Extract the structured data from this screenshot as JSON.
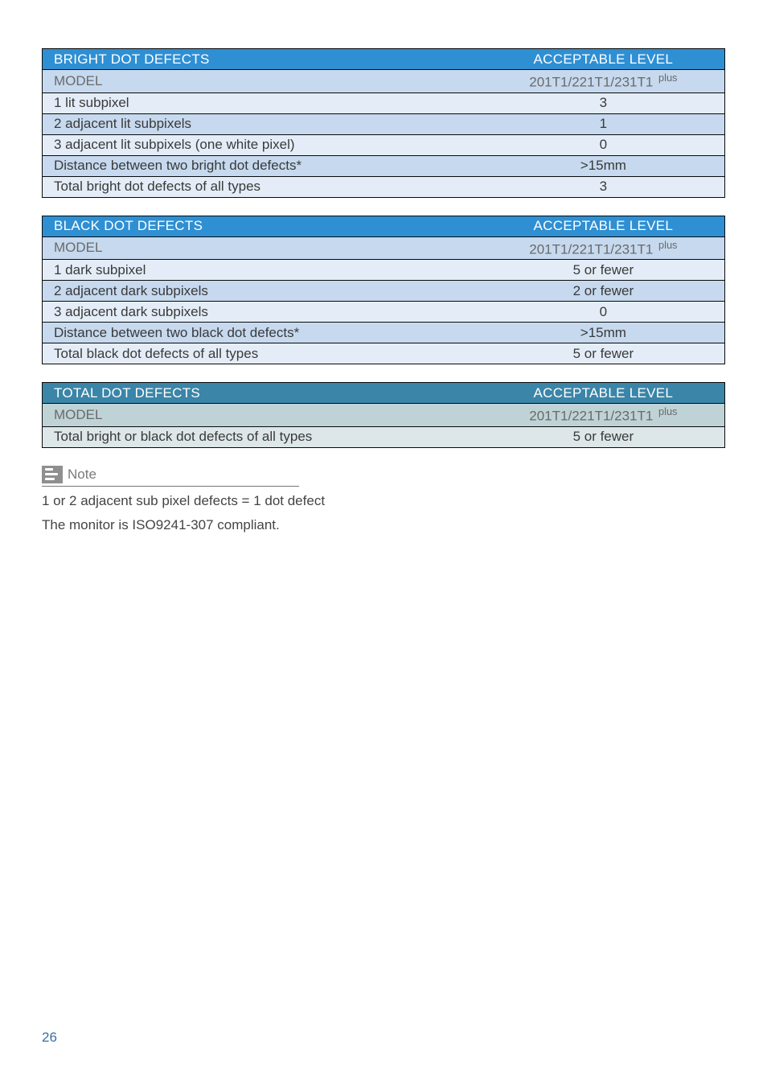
{
  "colors": {
    "hdr_bg_tables12": "#2f8fd3",
    "hdr_bg_table3": "#3a85a8",
    "row_alt_a": "#c6d9ee",
    "row_alt_b": "#e4edf7",
    "row_alt_a3": "#bfd3d6",
    "row_alt_b3": "#dde7e9",
    "model_text": "#6a6a6a",
    "body_text": "#3a3a3a",
    "note_gray": "#7a7a7a",
    "page_num": "#3a6ea8"
  },
  "tables": [
    {
      "id": "bright",
      "hdr_bg": "#2f8fd3",
      "alt_a": "#c6d9ee",
      "alt_b": "#e4edf7",
      "header": [
        "BRIGHT DOT DEFECTS",
        "ACCEPTABLE LEVEL"
      ],
      "rows": [
        {
          "c1": "MODEL",
          "c2": "201T1/221T1/231T1",
          "plus": true,
          "model": true
        },
        {
          "c1": "1 lit subpixel",
          "c2": "3"
        },
        {
          "c1": "2 adjacent lit subpixels",
          "c2": "1"
        },
        {
          "c1": "3 adjacent lit subpixels (one white pixel)",
          "c2": "0"
        },
        {
          "c1": "Distance between two bright dot defects*",
          "c2": ">15mm"
        },
        {
          "c1": "Total bright dot defects of all types",
          "c2": "3"
        }
      ]
    },
    {
      "id": "black",
      "hdr_bg": "#2f8fd3",
      "alt_a": "#c6d9ee",
      "alt_b": "#e4edf7",
      "header": [
        "BLACK DOT DEFECTS",
        "ACCEPTABLE LEVEL"
      ],
      "rows": [
        {
          "c1": "MODEL",
          "c2": "201T1/221T1/231T1",
          "plus": true,
          "model": true
        },
        {
          "c1": "1 dark subpixel",
          "c2": "5 or fewer"
        },
        {
          "c1": "2 adjacent dark subpixels",
          "c2": "2 or fewer"
        },
        {
          "c1": "3 adjacent dark subpixels",
          "c2": "0"
        },
        {
          "c1": "Distance between two black dot defects*",
          "c2": ">15mm"
        },
        {
          "c1": "Total black dot defects of all types",
          "c2": "5 or fewer"
        }
      ]
    },
    {
      "id": "total",
      "hdr_bg": "#3a85a8",
      "alt_a": "#bfd3d6",
      "alt_b": "#dde7e9",
      "header": [
        "TOTAL DOT DEFECTS",
        "ACCEPTABLE LEVEL"
      ],
      "rows": [
        {
          "c1": "MODEL",
          "c2": "201T1/221T1/231T1",
          "plus": true,
          "model": true
        },
        {
          "c1": "Total bright or black dot defects of all types",
          "c2": "5 or fewer"
        }
      ]
    }
  ],
  "note": {
    "label": "Note",
    "line1": "1 or 2 adjacent sub pixel defects = 1 dot defect",
    "line2": "The monitor is ISO9241-307 compliant."
  },
  "page_number": "26"
}
